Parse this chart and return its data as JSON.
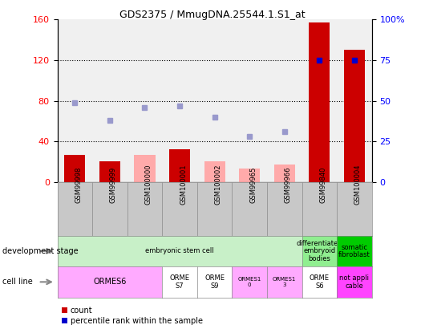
{
  "title": "GDS2375 / MmugDNA.25544.1.S1_at",
  "samples": [
    "GSM99998",
    "GSM99999",
    "GSM100000",
    "GSM100001",
    "GSM100002",
    "GSM99965",
    "GSM99966",
    "GSM99840",
    "GSM100004"
  ],
  "count_present": [
    27,
    20,
    null,
    32,
    null,
    null,
    null,
    157,
    130
  ],
  "count_absent": [
    null,
    null,
    27,
    null,
    20,
    13,
    17,
    null,
    null
  ],
  "pct_rank_present": [
    null,
    null,
    null,
    null,
    null,
    null,
    null,
    75,
    75
  ],
  "pct_rank_absent": [
    49,
    38,
    46,
    47,
    40,
    28,
    31,
    null,
    null
  ],
  "ylim_left": [
    0,
    160
  ],
  "ylim_right": [
    0,
    100
  ],
  "yticks_left": [
    0,
    40,
    80,
    120,
    160
  ],
  "yticks_right": [
    0,
    25,
    50,
    75,
    100
  ],
  "yticklabels_right": [
    "0",
    "25",
    "50",
    "75",
    "100%"
  ],
  "dev_stage_groups": [
    {
      "label": "embryonic stem cell",
      "start": 0,
      "end": 7,
      "color": "#c8f0c8"
    },
    {
      "label": "differentiated\nembryoid\nbodies",
      "start": 7,
      "end": 8,
      "color": "#90ee90"
    },
    {
      "label": "somatic\nfibroblast",
      "start": 8,
      "end": 9,
      "color": "#00cc00"
    }
  ],
  "cell_line_groups": [
    {
      "label": "ORMES6",
      "start": 0,
      "end": 3,
      "color": "#ffaaff",
      "fontsize": 7
    },
    {
      "label": "ORME\nS7",
      "start": 3,
      "end": 4,
      "color": "#ffffff",
      "fontsize": 6
    },
    {
      "label": "ORME\nS9",
      "start": 4,
      "end": 5,
      "color": "#ffffff",
      "fontsize": 6
    },
    {
      "label": "ORMES1\n0",
      "start": 5,
      "end": 6,
      "color": "#ffaaff",
      "fontsize": 5
    },
    {
      "label": "ORMES1\n3",
      "start": 6,
      "end": 7,
      "color": "#ffaaff",
      "fontsize": 5
    },
    {
      "label": "ORME\nS6",
      "start": 7,
      "end": 8,
      "color": "#ffffff",
      "fontsize": 6
    },
    {
      "label": "not appli\ncable",
      "start": 8,
      "end": 9,
      "color": "#ff44ff",
      "fontsize": 6
    }
  ],
  "bar_color_present": "#cc0000",
  "bar_color_absent": "#ffaaaa",
  "dot_color_present": "#0000cc",
  "dot_color_absent": "#9999cc",
  "plot_bg": "#f0f0f0",
  "sample_col_bg": "#c8c8c8"
}
